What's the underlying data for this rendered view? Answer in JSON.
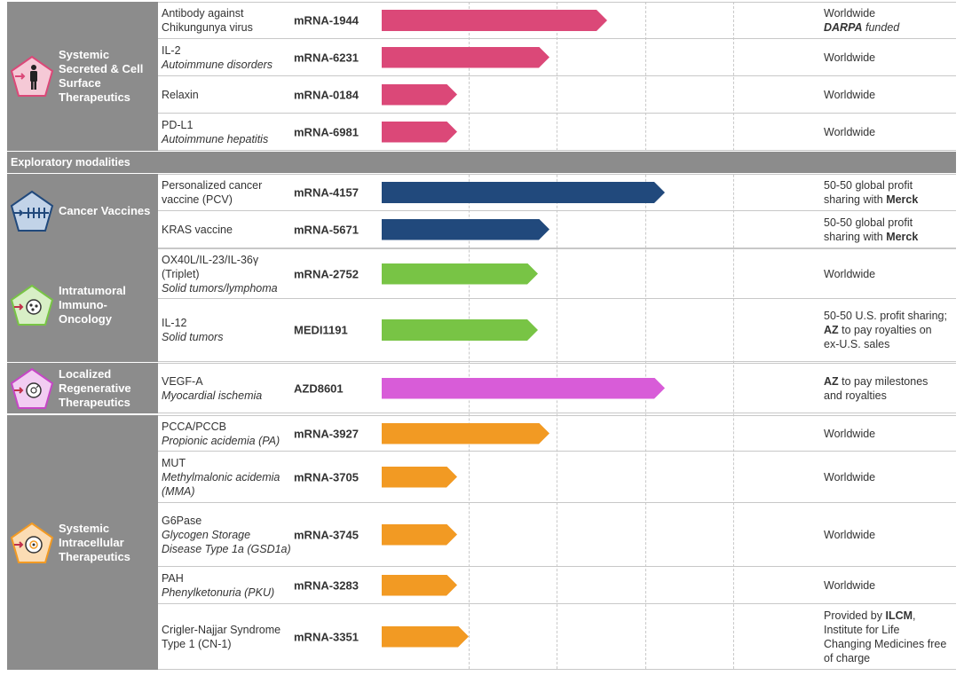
{
  "colors": {
    "secreted": "#db4878",
    "cancer": "#21497c",
    "intratumoral": "#78c445",
    "regenerative": "#d85cd8",
    "intracellular": "#f29a23",
    "category_bg": "#8c8c8c"
  },
  "icons": {
    "secreted": "person-icon",
    "cancer": "vaccine-icon",
    "intratumoral": "tumor-cell-icon",
    "regenerative": "regenerative-cell-icon",
    "intracellular": "intracellular-cell-icon"
  },
  "modalities_header": "Exploratory modalities",
  "sections": {
    "secreted": {
      "label": "Systemic Secreted & Cell Surface Therapeutics",
      "rows": [
        {
          "target": "Antibody against Chikungunya virus",
          "indication": "",
          "code": "mRNA-1944",
          "progress": 0.39,
          "note_a": "Worldwide",
          "note_b": "DARPA",
          "note_c": " funded"
        },
        {
          "target": "IL-2",
          "indication": "Autoimmune disorders",
          "code": "mRNA-6231",
          "progress": 0.29,
          "note_a": "Worldwide",
          "note_b": "",
          "note_c": ""
        },
        {
          "target": "Relaxin",
          "indication": "",
          "code": "mRNA-0184",
          "progress": 0.13,
          "note_a": "Worldwide",
          "note_b": "",
          "note_c": ""
        },
        {
          "target": "PD-L1",
          "indication": "Autoimmune hepatitis",
          "code": "mRNA-6981",
          "progress": 0.13,
          "note_a": "Worldwide",
          "note_b": "",
          "note_c": ""
        }
      ]
    },
    "cancer": {
      "label": "Cancer Vaccines",
      "rows": [
        {
          "target": "Personalized cancer vaccine (PCV)",
          "indication": "",
          "code": "mRNA-4157",
          "progress": 0.49,
          "note_a": "50-50 global profit sharing with ",
          "note_b": "Merck",
          "note_c": ""
        },
        {
          "target": "KRAS vaccine",
          "indication": "",
          "code": "mRNA-5671",
          "progress": 0.29,
          "note_a": "50-50 global profit sharing with ",
          "note_b": "Merck",
          "note_c": ""
        }
      ]
    },
    "intratumoral": {
      "label": "Intratumoral Immuno-Oncology",
      "rows": [
        {
          "target": "OX40L/IL-23/IL-36γ (Triplet)",
          "indication": "Solid tumors/lymphoma",
          "code": "mRNA-2752",
          "progress": 0.27,
          "note_a": "Worldwide",
          "note_b": "",
          "note_c": ""
        },
        {
          "target": "IL-12",
          "indication": "Solid tumors",
          "code": "MEDI1191",
          "progress": 0.27,
          "note_a": "50-50 U.S. profit sharing; ",
          "note_b": "AZ",
          "note_c": " to pay royalties on ex-U.S. sales"
        }
      ]
    },
    "regenerative": {
      "label": "Localized Regenerative Therapeutics",
      "rows": [
        {
          "target": "VEGF-A",
          "indication": "Myocardial ischemia",
          "code": "AZD8601",
          "progress": 0.49,
          "note_a": "",
          "note_b": "AZ",
          "note_c": " to pay milestones and royalties"
        }
      ]
    },
    "intracellular": {
      "label": "Systemic Intracellular Therapeutics",
      "rows": [
        {
          "target": "PCCA/PCCB",
          "indication": "Propionic acidemia (PA)",
          "code": "mRNA-3927",
          "progress": 0.29,
          "note_a": "Worldwide",
          "note_b": "",
          "note_c": ""
        },
        {
          "target": "MUT",
          "indication": "Methylmalonic acidemia (MMA)",
          "code": "mRNA-3705",
          "progress": 0.13,
          "note_a": "Worldwide",
          "note_b": "",
          "note_c": ""
        },
        {
          "target": "G6Pase",
          "indication": "Glycogen Storage Disease Type 1a (GSD1a)",
          "code": "mRNA-3745",
          "progress": 0.13,
          "note_a": "Worldwide",
          "note_b": "",
          "note_c": ""
        },
        {
          "target": "PAH",
          "indication": "Phenylketonuria (PKU)",
          "code": "mRNA-3283",
          "progress": 0.13,
          "note_a": "Worldwide",
          "note_b": "",
          "note_c": ""
        },
        {
          "target": "Crigler-Najjar Syndrome Type 1 (CN-1)",
          "indication": "",
          "code": "mRNA-3351",
          "progress": 0.15,
          "note_a": "Provided by ",
          "note_b": "ILCM",
          "note_c": ", Institute for Life Changing Medicines free of charge"
        }
      ]
    }
  }
}
